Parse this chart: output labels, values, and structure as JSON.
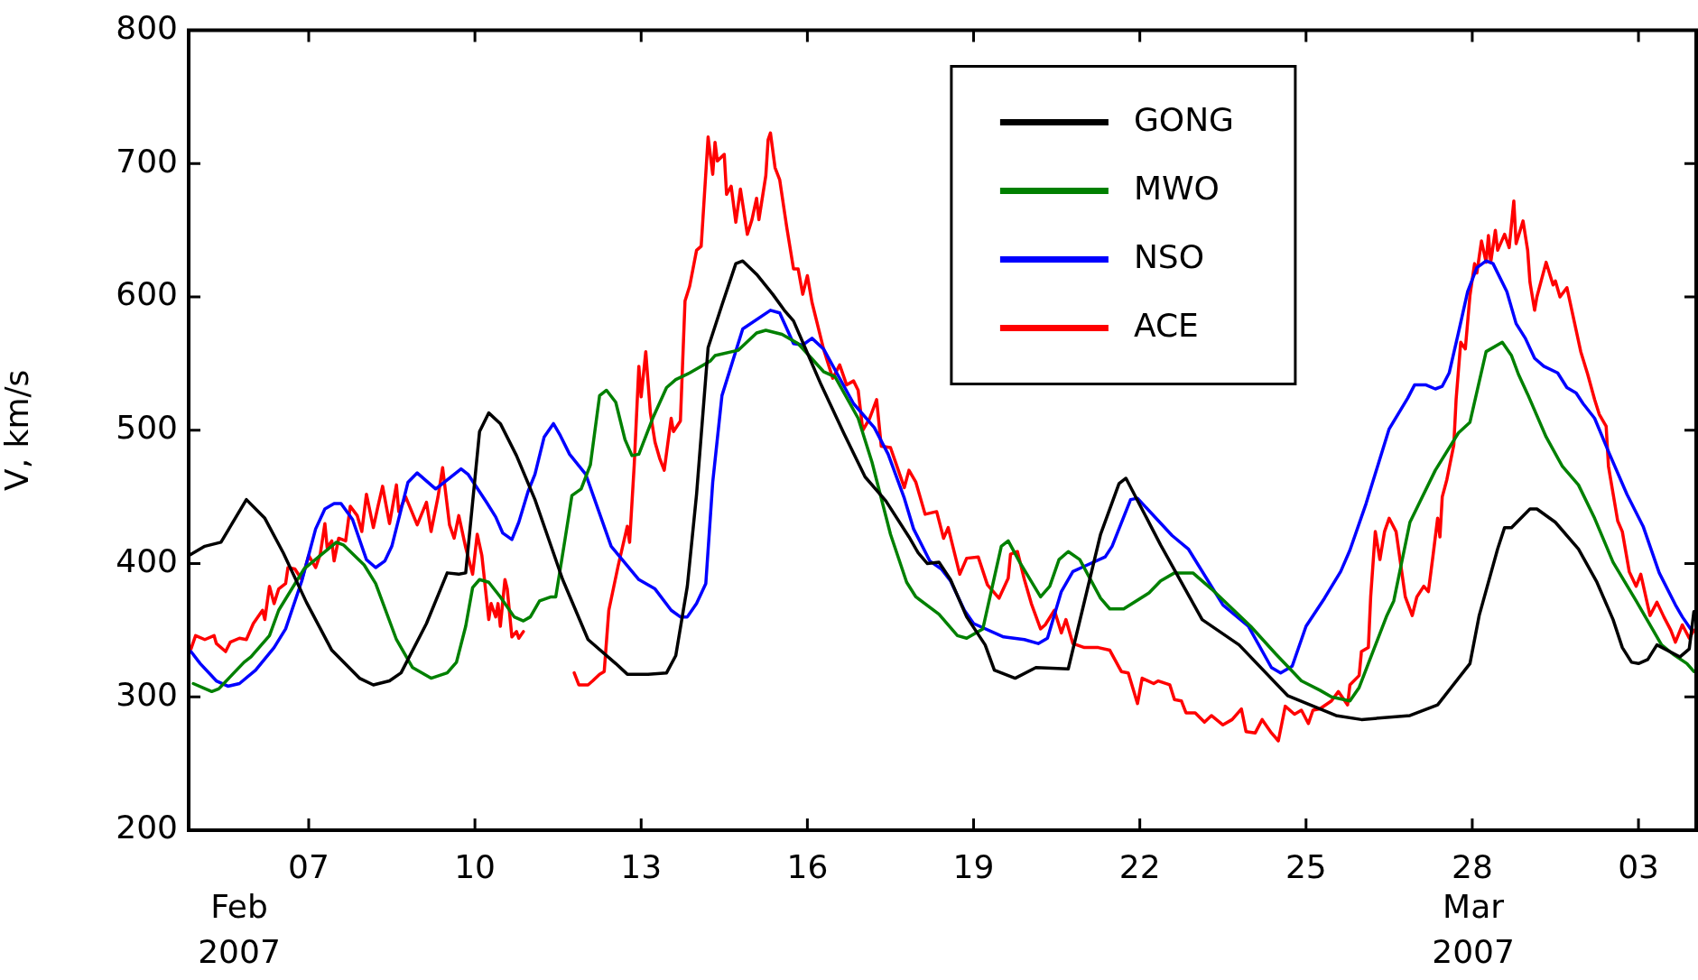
{
  "chart_data": {
    "type": "line",
    "ylabel": "V, km/s",
    "xlim": [
      "2007-02-04T20:00",
      "2007-03-04T01:00"
    ],
    "ylim": [
      200,
      800
    ],
    "yticks": [
      200,
      300,
      400,
      500,
      600,
      700,
      800
    ],
    "annotations": [
      "Feb\n2007",
      "Mar\n2007"
    ],
    "xticks": [
      {
        "value": "2007-02-07",
        "label": "07"
      },
      {
        "value": "2007-02-10",
        "label": "10"
      },
      {
        "value": "2007-02-13",
        "label": "13"
      },
      {
        "value": "2007-02-16",
        "label": "16"
      },
      {
        "value": "2007-02-19",
        "label": "19"
      },
      {
        "value": "2007-02-22",
        "label": "22"
      },
      {
        "value": "2007-02-25",
        "label": "25"
      },
      {
        "value": "2007-02-28",
        "label": "28"
      },
      {
        "value": "2007-03-03",
        "label": "03"
      }
    ],
    "legend": "top",
    "series": [
      {
        "name": "GONG",
        "color": "#000000",
        "x": [
          "2007-02-04T20:00",
          "2007-02-05T03:00",
          "2007-02-05T10:00",
          "2007-02-05T21:00",
          "2007-02-06T05:00",
          "2007-02-06T13:00",
          "2007-02-06T23:00",
          "2007-02-07T10:00",
          "2007-02-07T22:00",
          "2007-02-08T04:00",
          "2007-02-08T11:00",
          "2007-02-08T16:00",
          "2007-02-09T03:00",
          "2007-02-09T12:00",
          "2007-02-09T17:00",
          "2007-02-09T20:00",
          "2007-02-10T02:00",
          "2007-02-10T06:00",
          "2007-02-10T11:00",
          "2007-02-10T18:00",
          "2007-02-11T02:00",
          "2007-02-11T14:00",
          "2007-02-12T01:00",
          "2007-02-12T13:00",
          "2007-02-12T18:00",
          "2007-02-13T03:00",
          "2007-02-13T11:00",
          "2007-02-13T15:00",
          "2007-02-13T20:00",
          "2007-02-14T00:00",
          "2007-02-14T05:00",
          "2007-02-14T11:00",
          "2007-02-14T17:00",
          "2007-02-14T20:00",
          "2007-02-15T02:00",
          "2007-02-15T09:00",
          "2007-02-15T14:00",
          "2007-02-15T18:00",
          "2007-02-15T23:00",
          "2007-02-16T06:00",
          "2007-02-16T16:00",
          "2007-02-17T01:00",
          "2007-02-17T10:00",
          "2007-02-17T20:00",
          "2007-02-18T00:00",
          "2007-02-18T04:00",
          "2007-02-18T09:00",
          "2007-02-18T14:00",
          "2007-02-18T21:00",
          "2007-02-19T05:00",
          "2007-02-19T09:00",
          "2007-02-19T18:00",
          "2007-02-20T03:00",
          "2007-02-20T17:00",
          "2007-02-21T07:00",
          "2007-02-21T15:00",
          "2007-02-21T18:00",
          "2007-02-22T09:00",
          "2007-02-23T03:00",
          "2007-02-23T19:00",
          "2007-02-24T16:00",
          "2007-02-25T13:00",
          "2007-02-26T00:00",
          "2007-02-26T21:00",
          "2007-02-27T09:00",
          "2007-02-27T23:00",
          "2007-02-28T03:00",
          "2007-02-28T11:00",
          "2007-02-28T14:00",
          "2007-02-28T17:00",
          "2007-03-01T01:00",
          "2007-03-01T04:00",
          "2007-03-01T12:00",
          "2007-03-01T22:00",
          "2007-03-02T06:00",
          "2007-03-02T13:00",
          "2007-03-02T17:00",
          "2007-03-02T21:00",
          "2007-03-03T00:00",
          "2007-03-03T04:00",
          "2007-03-03T08:00",
          "2007-03-03T18:00",
          "2007-03-03T22:00",
          "2007-03-04T00:00"
        ],
        "values": [
          406,
          413,
          416,
          448,
          434,
          408,
          371,
          335,
          314,
          309,
          312,
          318,
          355,
          393,
          392,
          393,
          499,
          513,
          505,
          481,
          448,
          388,
          343,
          325,
          317,
          317,
          318,
          331,
          383,
          452,
          562,
          594,
          625,
          627,
          617,
          602,
          590,
          582,
          562,
          534,
          497,
          465,
          447,
          420,
          408,
          400,
          401,
          388,
          360,
          339,
          320,
          314,
          322,
          321,
          422,
          460,
          464,
          414,
          358,
          339,
          301,
          286,
          283,
          286,
          294,
          325,
          361,
          411,
          427,
          427,
          441,
          441,
          431,
          411,
          386,
          358,
          337,
          326,
          325,
          328,
          339,
          330,
          336,
          364
        ]
      },
      {
        "name": "MWO",
        "color": "#008000",
        "x": [
          "2007-02-04T22:00",
          "2007-02-05T06:00",
          "2007-02-05T09:00",
          "2007-02-05T20:00",
          "2007-02-05T23:00",
          "2007-02-06T07:00",
          "2007-02-06T11:00",
          "2007-02-06T22:00",
          "2007-02-07T12:00",
          "2007-02-07T15:00",
          "2007-02-08T00:00",
          "2007-02-08T05:00",
          "2007-02-08T14:00",
          "2007-02-08T21:00",
          "2007-02-09T05:00",
          "2007-02-09T12:00",
          "2007-02-09T16:00",
          "2007-02-09T20:00",
          "2007-02-09T23:00",
          "2007-02-10T02:00",
          "2007-02-10T06:00",
          "2007-02-10T11:00",
          "2007-02-10T17:00",
          "2007-02-10T21:00",
          "2007-02-11T00:00",
          "2007-02-11T04:00",
          "2007-02-11T09:00",
          "2007-02-11T11:00",
          "2007-02-11T15:00",
          "2007-02-11T18:00",
          "2007-02-11T22:00",
          "2007-02-12T02:00",
          "2007-02-12T06:00",
          "2007-02-12T09:00",
          "2007-02-12T13:00",
          "2007-02-12T17:00",
          "2007-02-12T20:00",
          "2007-02-12T23:00",
          "2007-02-13T05:00",
          "2007-02-13T11:00",
          "2007-02-13T15:00",
          "2007-02-13T21:00",
          "2007-02-14T06:00",
          "2007-02-14T08:00",
          "2007-02-14T18:00",
          "2007-02-15T02:00",
          "2007-02-15T06:00",
          "2007-02-15T13:00",
          "2007-02-15T20:00",
          "2007-02-16T07:00",
          "2007-02-16T12:00",
          "2007-02-16T22:00",
          "2007-02-17T04:00",
          "2007-02-17T12:00",
          "2007-02-17T19:00",
          "2007-02-17T23:00",
          "2007-02-18T09:00",
          "2007-02-18T17:00",
          "2007-02-18T21:00",
          "2007-02-19T04:00",
          "2007-02-19T12:00",
          "2007-02-19T15:00",
          "2007-02-19T20:00",
          "2007-02-20T05:00",
          "2007-02-20T09:00",
          "2007-02-20T13:00",
          "2007-02-20T17:00",
          "2007-02-20T22:00",
          "2007-02-21T07:00",
          "2007-02-21T11:00",
          "2007-02-21T17:00",
          "2007-02-22T04:00",
          "2007-02-22T09:00",
          "2007-02-22T15:00",
          "2007-02-22T23:00",
          "2007-02-23T07:00",
          "2007-02-24T00:00",
          "2007-02-24T11:00",
          "2007-02-24T22:00",
          "2007-02-25T06:00",
          "2007-02-25T11:00",
          "2007-02-25T19:00",
          "2007-02-25T23:00",
          "2007-02-26T11:00",
          "2007-02-26T14:00",
          "2007-02-26T21:00",
          "2007-02-27T08:00",
          "2007-02-27T18:00",
          "2007-02-27T23:00",
          "2007-02-28T06:00",
          "2007-02-28T13:00",
          "2007-02-28T17:00",
          "2007-02-28T20:00",
          "2007-03-01T00:00",
          "2007-03-01T08:00",
          "2007-03-01T15:00",
          "2007-03-01T22:00",
          "2007-03-02T05:00",
          "2007-03-02T13:00",
          "2007-03-02T23:00",
          "2007-03-03T10:00",
          "2007-03-03T15:00",
          "2007-03-03T21:00",
          "2007-03-04T00:00"
        ],
        "values": [
          310,
          304,
          306,
          326,
          330,
          346,
          365,
          396,
          416,
          414,
          399,
          385,
          343,
          322,
          314,
          318,
          326,
          353,
          382,
          388,
          386,
          375,
          360,
          357,
          360,
          372,
          375,
          375,
          418,
          451,
          456,
          474,
          526,
          530,
          521,
          493,
          481,
          482,
          509,
          532,
          538,
          543,
          552,
          556,
          560,
          573,
          575,
          572,
          565,
          544,
          540,
          509,
          476,
          422,
          386,
          375,
          362,
          346,
          344,
          351,
          413,
          417,
          401,
          375,
          383,
          403,
          409,
          403,
          374,
          366,
          366,
          378,
          387,
          393,
          393,
          381,
          353,
          332,
          312,
          305,
          300,
          297,
          307,
          361,
          372,
          431,
          470,
          498,
          506,
          559,
          566,
          556,
          542,
          527,
          495,
          473,
          459,
          434,
          401,
          372,
          339,
          332,
          325,
          319
        ]
      },
      {
        "name": "NSO",
        "color": "#0000ff",
        "x": [
          "2007-02-04T21:00",
          "2007-02-05T01:00",
          "2007-02-05T08:00",
          "2007-02-05T13:00",
          "2007-02-05T18:00",
          "2007-02-06T01:00",
          "2007-02-06T09:00",
          "2007-02-06T14:00",
          "2007-02-06T21:00",
          "2007-02-07T03:00",
          "2007-02-07T07:00",
          "2007-02-07T11:00",
          "2007-02-07T14:00",
          "2007-02-07T19:00",
          "2007-02-08T01:00",
          "2007-02-08T05:00",
          "2007-02-08T09:00",
          "2007-02-08T12:00",
          "2007-02-08T19:00",
          "2007-02-08T23:00",
          "2007-02-09T07:00",
          "2007-02-09T10:00",
          "2007-02-09T18:00",
          "2007-02-09T21:00",
          "2007-02-10T05:00",
          "2007-02-10T09:00",
          "2007-02-10T12:00",
          "2007-02-10T16:00",
          "2007-02-10T19:00",
          "2007-02-10T23:00",
          "2007-02-11T02:00",
          "2007-02-11T06:00",
          "2007-02-11T10:00",
          "2007-02-11T13:00",
          "2007-02-11T17:00",
          "2007-02-12T00:00",
          "2007-02-12T11:00",
          "2007-02-12T23:00",
          "2007-02-13T06:00",
          "2007-02-13T13:00",
          "2007-02-13T17:00",
          "2007-02-13T20:00",
          "2007-02-14T00:00",
          "2007-02-14T04:00",
          "2007-02-14T07:00",
          "2007-02-14T11:00",
          "2007-02-14T20:00",
          "2007-02-15T08:00",
          "2007-02-15T12:00",
          "2007-02-15T18:00",
          "2007-02-15T22:00",
          "2007-02-16T02:00",
          "2007-02-16T07:00",
          "2007-02-16T20:00",
          "2007-02-17T05:00",
          "2007-02-17T11:00",
          "2007-02-17T18:00",
          "2007-02-17T22:00",
          "2007-02-18T05:00",
          "2007-02-18T10:00",
          "2007-02-18T14:00",
          "2007-02-18T20:00",
          "2007-02-19T00:00",
          "2007-02-19T13:00",
          "2007-02-19T22:00",
          "2007-02-20T04:00",
          "2007-02-20T08:00",
          "2007-02-20T14:00",
          "2007-02-20T19:00",
          "2007-02-21T00:00",
          "2007-02-21T09:00",
          "2007-02-21T12:00",
          "2007-02-21T20:00",
          "2007-02-21T23:00",
          "2007-02-22T14:00",
          "2007-02-22T21:00",
          "2007-02-23T12:00",
          "2007-02-23T23:00",
          "2007-02-24T09:00",
          "2007-02-24T13:00",
          "2007-02-24T18:00",
          "2007-02-25T00:00",
          "2007-02-25T08:00",
          "2007-02-25T15:00",
          "2007-02-25T19:00",
          "2007-02-26T02:00",
          "2007-02-26T12:00",
          "2007-02-26T20:00",
          "2007-02-26T23:00",
          "2007-02-27T04:00",
          "2007-02-27T08:00",
          "2007-02-27T11:00",
          "2007-02-27T14:00",
          "2007-02-27T18:00",
          "2007-02-27T22:00",
          "2007-02-28T02:00",
          "2007-02-28T06:00",
          "2007-02-28T09:00",
          "2007-02-28T15:00",
          "2007-02-28T19:00",
          "2007-02-28T23:00",
          "2007-03-01T03:00",
          "2007-03-01T07:00",
          "2007-03-01T13:00",
          "2007-03-01T17:00",
          "2007-03-01T21:00",
          "2007-03-02T00:00",
          "2007-03-02T05:00",
          "2007-03-02T11:00",
          "2007-03-02T19:00",
          "2007-03-03T02:00",
          "2007-03-03T09:00",
          "2007-03-03T16:00",
          "2007-03-03T19:00",
          "2007-03-03T23:00"
        ],
        "values": [
          334,
          325,
          312,
          308,
          310,
          320,
          337,
          351,
          387,
          426,
          441,
          445,
          445,
          433,
          403,
          397,
          402,
          413,
          461,
          468,
          456,
          460,
          471,
          467,
          446,
          435,
          423,
          418,
          431,
          454,
          467,
          495,
          505,
          496,
          482,
          467,
          413,
          388,
          381,
          365,
          360,
          360,
          370,
          385,
          461,
          526,
          576,
          590,
          588,
          565,
          564,
          569,
          561,
          520,
          502,
          482,
          449,
          426,
          402,
          396,
          387,
          365,
          355,
          345,
          343,
          340,
          344,
          379,
          394,
          398,
          405,
          413,
          448,
          449,
          421,
          411,
          369,
          353,
          322,
          318,
          323,
          353,
          374,
          394,
          410,
          445,
          501,
          524,
          534,
          534,
          531,
          533,
          543,
          573,
          604,
          622,
          627,
          625,
          604,
          580,
          569,
          554,
          548,
          543,
          532,
          528,
          520,
          509,
          484,
          452,
          428,
          393,
          369,
          360,
          350
        ]
      },
      {
        "name": "ACE",
        "color": "#ff0000",
        "x": [
          "2007-02-04T21:00",
          "2007-02-04T23:00",
          "2007-02-05T03:00",
          "2007-02-05T07:00",
          "2007-02-05T08:00",
          "2007-02-05T12:00",
          "2007-02-05T14:00",
          "2007-02-05T18:00",
          "2007-02-05T21:00",
          "2007-02-06T00:00",
          "2007-02-06T04:00",
          "2007-02-06T05:00",
          "2007-02-06T07:00",
          "2007-02-06T09:00",
          "2007-02-06T11:00",
          "2007-02-06T14:00",
          "2007-02-06T15:00",
          "2007-02-06T18:00",
          "2007-02-06T21:00",
          "2007-02-07T00:00",
          "2007-02-07T03:00",
          "2007-02-07T05:00",
          "2007-02-07T07:00",
          "2007-02-07T08:00",
          "2007-02-07T10:00",
          "2007-02-07T11:00",
          "2007-02-07T13:00",
          "2007-02-07T16:00",
          "2007-02-07T18:00",
          "2007-02-07T21:00",
          "2007-02-07T23:00",
          "2007-02-08T01:00",
          "2007-02-08T04:00",
          "2007-02-08T06:00",
          "2007-02-08T08:00",
          "2007-02-08T11:00",
          "2007-02-08T14:00",
          "2007-02-08T15:00",
          "2007-02-08T18:00",
          "2007-02-08T23:00",
          "2007-02-09T03:00",
          "2007-02-09T05:00",
          "2007-02-09T08:00",
          "2007-02-09T10:00",
          "2007-02-09T13:00",
          "2007-02-09T15:00",
          "2007-02-09T17:00",
          "2007-02-09T20:00",
          "2007-02-09T23:00",
          "2007-02-10T01:00",
          "2007-02-10T03:00",
          "2007-02-10T06:00",
          "2007-02-10T07:00",
          "2007-02-10T09:00",
          "2007-02-10T10:00",
          "2007-02-10T11:00",
          "2007-02-10T13:00",
          "2007-02-10T14:00",
          "2007-02-10T16:00",
          "2007-02-10T18:00",
          "2007-02-10T19:00",
          "2007-02-10T21:00",
          "2007-02-11T08:00",
          "2007-02-11T19:00",
          "2007-02-11T21:00",
          "2007-02-12T01:00",
          "2007-02-12T03:00",
          "2007-02-12T06:00",
          "2007-02-12T08:00",
          "2007-02-12T10:00",
          "2007-02-12T14:00",
          "2007-02-12T18:00",
          "2007-02-12T19:00",
          "2007-02-12T21:00",
          "2007-02-12T23:00",
          "2007-02-13T00:00",
          "2007-02-13T02:00",
          "2007-02-13T04:00",
          "2007-02-13T06:00",
          "2007-02-13T08:00",
          "2007-02-13T10:00",
          "2007-02-13T13:00",
          "2007-02-13T14:00",
          "2007-02-13T17:00",
          "2007-02-13T19:00",
          "2007-02-13T21:00",
          "2007-02-14T00:00",
          "2007-02-14T02:00",
          "2007-02-14T05:00",
          "2007-02-14T07:00",
          "2007-02-14T08:00",
          "2007-02-14T09:00",
          "2007-02-14T12:00",
          "2007-02-14T13:00",
          "2007-02-14T15:00",
          "2007-02-14T17:00",
          "2007-02-14T19:00",
          "2007-02-14T22:00",
          "2007-02-15T00:00",
          "2007-02-15T02:00",
          "2007-02-15T03:00",
          "2007-02-15T06:00",
          "2007-02-15T07:00",
          "2007-02-15T08:00",
          "2007-02-15T10:00",
          "2007-02-15T12:00",
          "2007-02-15T15:00",
          "2007-02-15T18:00",
          "2007-02-15T20:00",
          "2007-02-15T22:00",
          "2007-02-16T00:00",
          "2007-02-16T02:00",
          "2007-02-16T07:00",
          "2007-02-16T11:00",
          "2007-02-16T14:00",
          "2007-02-16T17:00",
          "2007-02-16T20:00",
          "2007-02-16T22:00",
          "2007-02-17T00:00",
          "2007-02-17T03:00",
          "2007-02-17T06:00",
          "2007-02-17T08:00",
          "2007-02-17T12:00",
          "2007-02-17T18:00",
          "2007-02-17T20:00",
          "2007-02-17T23:00",
          "2007-02-18T03:00",
          "2007-02-18T08:00",
          "2007-02-18T11:00",
          "2007-02-18T13:00",
          "2007-02-18T18:00",
          "2007-02-18T21:00",
          "2007-02-19T02:00",
          "2007-02-19T06:00",
          "2007-02-19T11:00",
          "2007-02-19T15:00",
          "2007-02-19T16:00",
          "2007-02-19T19:00",
          "2007-02-19T22:00",
          "2007-02-20T01:00",
          "2007-02-20T05:00",
          "2007-02-20T07:00",
          "2007-02-20T11:00",
          "2007-02-20T14:00",
          "2007-02-20T16:00",
          "2007-02-20T19:00",
          "2007-02-21T00:00",
          "2007-02-21T06:00",
          "2007-02-21T11:00",
          "2007-02-21T16:00",
          "2007-02-21T19:00",
          "2007-02-21T23:00",
          "2007-02-22T01:00",
          "2007-02-22T06:00",
          "2007-02-22T08:00",
          "2007-02-22T13:00",
          "2007-02-22T15:00",
          "2007-02-22T18:00",
          "2007-02-22T20:00",
          "2007-02-23T00:00",
          "2007-02-23T04:00",
          "2007-02-23T07:00",
          "2007-02-23T12:00",
          "2007-02-23T16:00",
          "2007-02-23T20:00",
          "2007-02-23T22:00",
          "2007-02-24T02:00",
          "2007-02-24T05:00",
          "2007-02-24T09:00",
          "2007-02-24T12:00",
          "2007-02-24T15:00",
          "2007-02-24T19:00",
          "2007-02-24T22:00",
          "2007-02-25T01:00",
          "2007-02-25T03:00",
          "2007-02-25T06:00",
          "2007-02-25T11:00",
          "2007-02-25T14:00",
          "2007-02-25T18:00",
          "2007-02-25T19:00",
          "2007-02-25T23:00",
          "2007-02-26T00:00",
          "2007-02-26T03:00",
          "2007-02-26T04:00",
          "2007-02-26T06:00",
          "2007-02-26T08:00",
          "2007-02-26T10:00",
          "2007-02-26T12:00",
          "2007-02-26T15:00",
          "2007-02-26T19:00",
          "2007-02-26T22:00",
          "2007-02-27T00:00",
          "2007-02-27T03:00",
          "2007-02-27T05:00",
          "2007-02-27T07:00",
          "2007-02-27T09:00",
          "2007-02-27T10:00",
          "2007-02-27T11:00",
          "2007-02-27T13:00",
          "2007-02-27T16:00",
          "2007-02-27T17:00",
          "2007-02-27T19:00",
          "2007-02-27T21:00",
          "2007-02-27T23:00",
          "2007-02-28T01:00",
          "2007-02-28T02:00",
          "2007-02-28T04:00",
          "2007-02-28T06:00",
          "2007-02-28T07:00",
          "2007-02-28T08:00",
          "2007-02-28T10:00",
          "2007-02-28T11:00",
          "2007-02-28T14:00",
          "2007-02-28T16:00",
          "2007-02-28T18:00",
          "2007-02-28T19:00",
          "2007-02-28T22:00",
          "2007-03-01T00:00",
          "2007-03-01T01:00",
          "2007-03-01T03:00",
          "2007-03-01T04:00",
          "2007-03-01T08:00",
          "2007-03-01T11:00",
          "2007-03-01T12:00",
          "2007-03-01T14:00",
          "2007-03-01T17:00",
          "2007-03-01T19:00",
          "2007-03-01T23:00",
          "2007-03-02T02:00",
          "2007-03-02T05:00",
          "2007-03-02T07:00",
          "2007-03-02T10:00",
          "2007-03-02T11:00",
          "2007-03-02T15:00",
          "2007-03-02T17:00",
          "2007-03-02T20:00",
          "2007-03-02T23:00",
          "2007-03-03T01:00",
          "2007-03-03T05:00",
          "2007-03-03T08:00",
          "2007-03-03T11:00",
          "2007-03-03T14:00",
          "2007-03-03T16:00",
          "2007-03-03T19:00",
          "2007-03-03T22:00",
          "2007-03-04T00:00"
        ],
        "values": [
          336,
          346,
          343,
          346,
          340,
          334,
          341,
          344,
          343,
          355,
          365,
          358,
          383,
          370,
          381,
          385,
          397,
          396,
          388,
          406,
          397,
          407,
          430,
          412,
          417,
          402,
          419,
          417,
          443,
          436,
          424,
          452,
          427,
          443,
          458,
          430,
          459,
          439,
          450,
          429,
          446,
          424,
          450,
          472,
          429,
          419,
          436,
          412,
          392,
          422,
          406,
          358,
          370,
          360,
          370,
          353,
          388,
          381,
          345,
          349,
          344,
          349,
          null,
          318,
          309,
          309,
          312,
          317,
          319,
          365,
          398,
          428,
          416,
          474,
          548,
          525,
          559,
          513,
          491,
          479,
          470,
          509,
          499,
          507,
          597,
          608,
          635,
          638,
          720,
          692,
          716,
          702,
          707,
          677,
          683,
          656,
          681,
          647,
          658,
          674,
          658,
          691,
          718,
          723,
          697,
          688,
          653,
          621,
          621,
          602,
          616,
          596,
          561,
          539,
          549,
          534,
          537,
          530,
          500,
          509,
          523,
          488,
          487,
          457,
          470,
          461,
          437,
          439,
          419,
          427,
          392,
          404,
          405,
          384,
          374,
          389,
          407,
          409,
          388,
          370,
          351,
          354,
          365,
          348,
          358,
          340,
          337,
          337,
          335,
          319,
          318,
          295,
          314,
          310,
          312,
          309,
          298,
          297,
          288,
          288,
          281,
          286,
          279,
          283,
          291,
          274,
          273,
          283,
          273,
          267,
          293,
          287,
          290,
          280,
          290,
          291,
          297,
          304,
          294,
          309,
          316,
          334,
          337,
          375,
          424,
          403,
          424,
          434,
          424,
          375,
          361,
          375,
          383,
          379,
          406,
          434,
          420,
          450,
          463,
          489,
          523,
          566,
          561,
          601,
          625,
          618,
          642,
          626,
          646,
          626,
          650,
          635,
          647,
          637,
          672,
          640,
          657,
          635,
          611,
          590,
          600,
          626,
          609,
          612,
          600,
          607,
          591,
          559,
          542,
          523,
          512,
          503,
          473,
          432,
          424,
          394,
          383,
          392,
          361,
          371,
          360,
          350,
          341,
          354,
          344,
          350
        ]
      }
    ]
  }
}
